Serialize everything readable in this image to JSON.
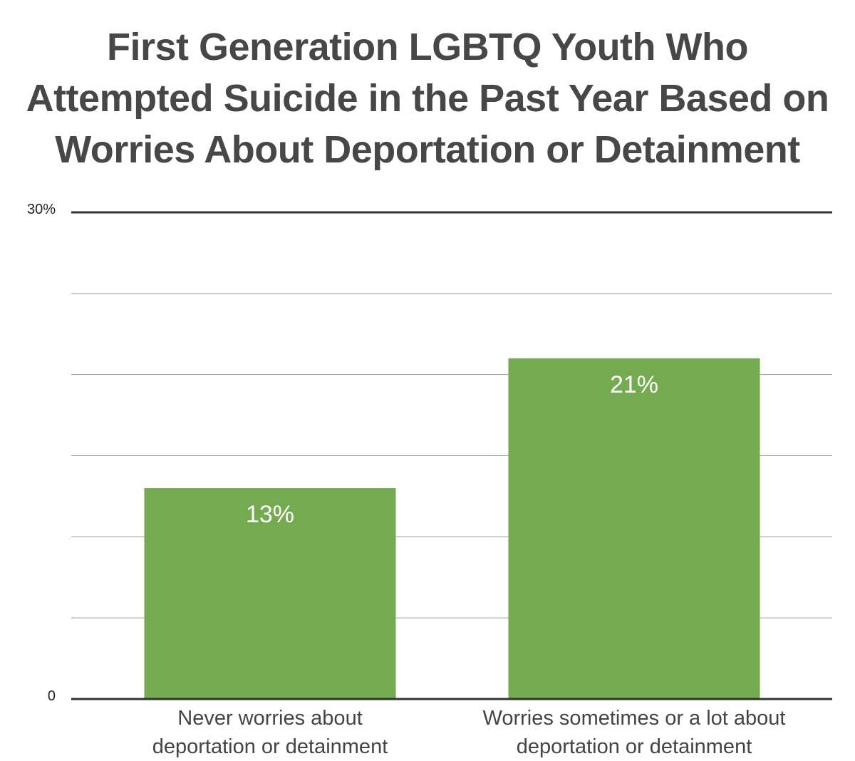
{
  "chart_data": {
    "type": "bar",
    "title": "First Generation LGBTQ Youth Who Attempted Suicide in the Past Year Based on Worries About Deportation or Detainment",
    "title_lines": [
      "First Generation LGBTQ Youth Who",
      "Attempted Suicide in the Past Year Based on",
      "Worries About Deportation or Detainment"
    ],
    "categories": [
      [
        "Never worries about",
        "deportation or detainment"
      ],
      [
        "Worries sometimes or a lot about",
        "deportation or detainment"
      ]
    ],
    "values": [
      13,
      21
    ],
    "data_labels": [
      "13%",
      "21%"
    ],
    "ylim": [
      0,
      30
    ],
    "y_tick_labels": [
      {
        "value": 30,
        "label": "30%"
      },
      {
        "value": 0,
        "label": "0"
      }
    ],
    "gridlines": [
      5,
      10,
      15,
      20,
      25
    ],
    "grid": true,
    "legend": "none",
    "bar_color": "#74aa50",
    "title_color": "#474747"
  }
}
